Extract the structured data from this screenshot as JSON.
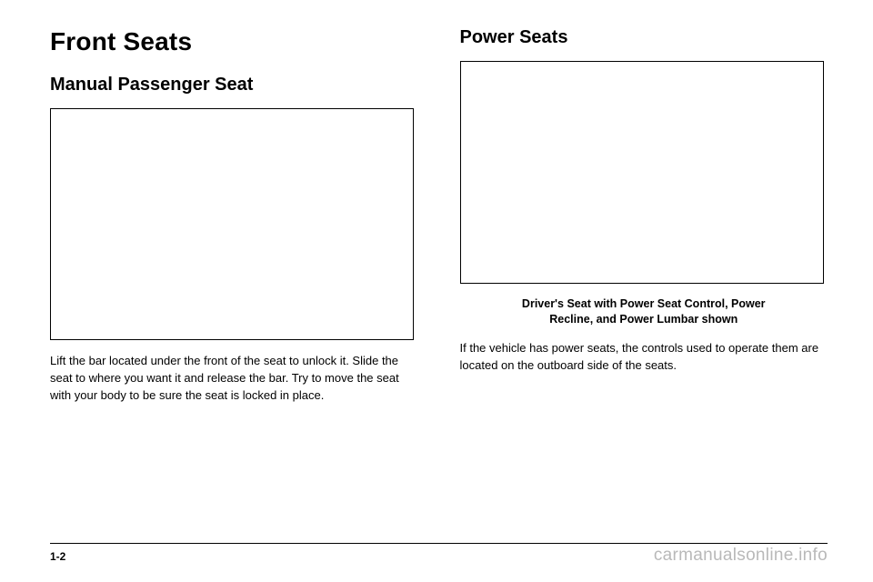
{
  "left": {
    "heading": "Front Seats",
    "subheading": "Manual Passenger Seat",
    "body": "Lift the bar located under the front of the seat to unlock it. Slide the seat to where you want it and release the bar. Try to move the seat with your body to be sure the seat is locked in place."
  },
  "right": {
    "subheading": "Power Seats",
    "caption_line1": "Driver's Seat with Power Seat Control, Power",
    "caption_line2": "Recline, and Power Lumbar shown",
    "body": "If the vehicle has power seats, the controls used to operate them are located on the outboard side of the seats."
  },
  "footer": {
    "page_number": "1-2",
    "watermark": "carmanualsonline.info"
  },
  "colors": {
    "text": "#000000",
    "background": "#ffffff",
    "watermark": "#b9b9b9"
  }
}
